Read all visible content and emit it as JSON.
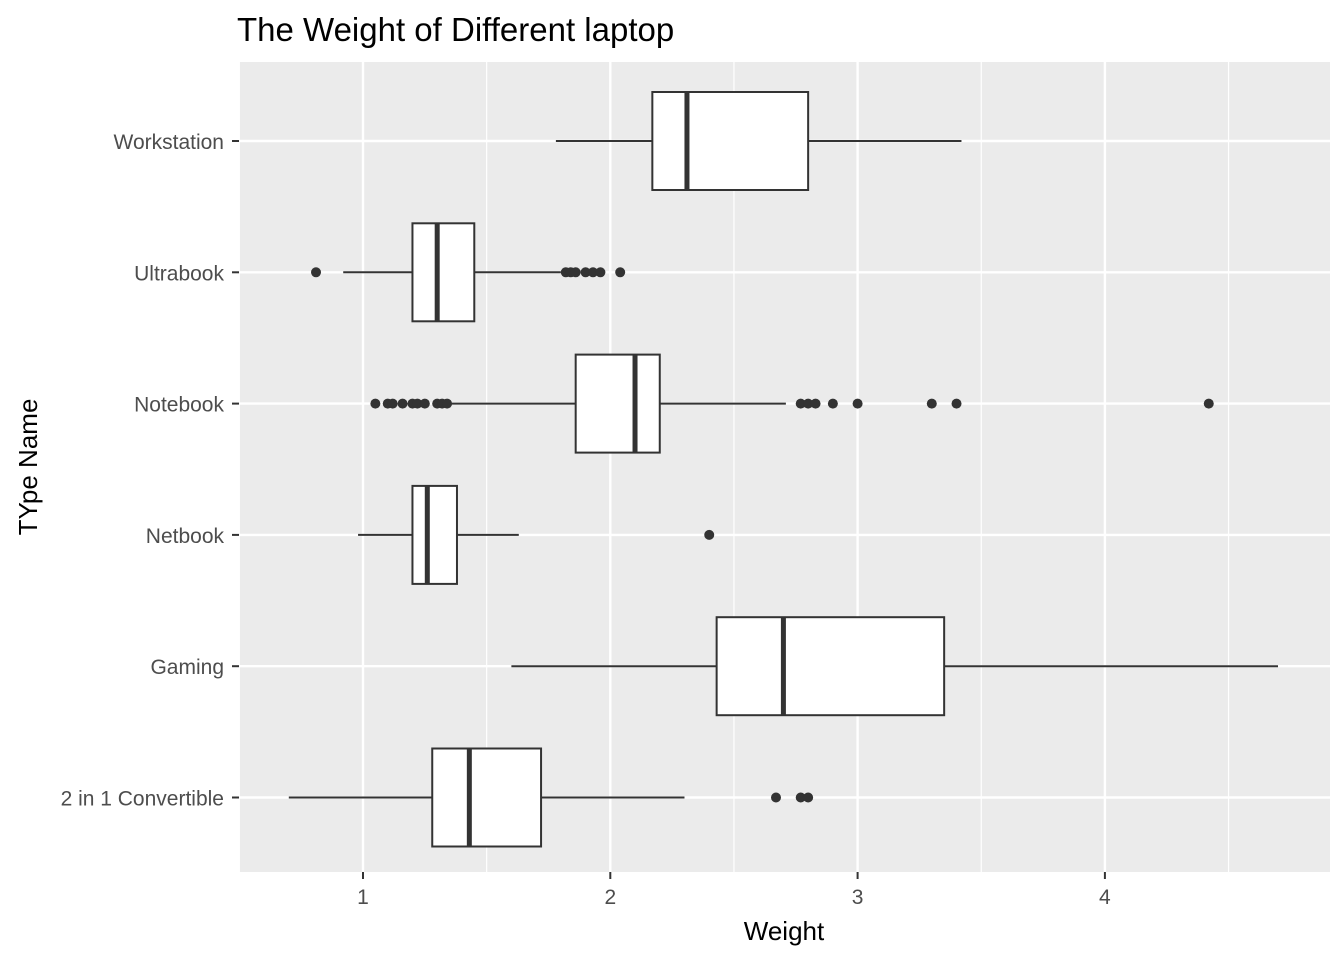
{
  "chart_data": {
    "type": "boxplot",
    "orientation": "horizontal",
    "title": "The Weight of Different laptop",
    "xlabel": "Weight",
    "ylabel": "TYpe Name",
    "xlim": [
      0.5,
      4.9
    ],
    "xticks": [
      1,
      2,
      3,
      4
    ],
    "grid": true,
    "legend": "none",
    "colors": {
      "panel": "#ebebeb",
      "grid_major": "#ffffff",
      "box_fill": "#ffffff",
      "box_line": "#333333",
      "axis_text": "#4d4d4d",
      "title": "#000000"
    },
    "categories": [
      "Workstation",
      "Ultrabook",
      "Notebook",
      "Netbook",
      "Gaming",
      "2 in 1 Convertible"
    ],
    "boxes": [
      {
        "category": "Workstation",
        "whisker_low": 1.78,
        "q1": 2.17,
        "median": 2.31,
        "q3": 2.8,
        "whisker_high": 3.42,
        "outliers": []
      },
      {
        "category": "Ultrabook",
        "whisker_low": 0.92,
        "q1": 1.2,
        "median": 1.3,
        "q3": 1.45,
        "whisker_high": 1.8,
        "outliers": [
          0.81,
          1.82,
          1.84,
          1.86,
          1.9,
          1.93,
          1.96,
          2.04
        ]
      },
      {
        "category": "Notebook",
        "whisker_low": 1.35,
        "q1": 1.86,
        "median": 2.1,
        "q3": 2.2,
        "whisker_high": 2.71,
        "outliers": [
          1.05,
          1.1,
          1.12,
          1.16,
          1.2,
          1.22,
          1.25,
          1.3,
          1.32,
          1.34,
          2.77,
          2.8,
          2.83,
          2.9,
          3.0,
          3.3,
          3.4,
          4.42
        ]
      },
      {
        "category": "Netbook",
        "whisker_low": 0.98,
        "q1": 1.2,
        "median": 1.26,
        "q3": 1.38,
        "whisker_high": 1.63,
        "outliers": [
          2.4
        ]
      },
      {
        "category": "Gaming",
        "whisker_low": 1.6,
        "q1": 2.43,
        "median": 2.7,
        "q3": 3.35,
        "whisker_high": 4.7,
        "outliers": []
      },
      {
        "category": "2 in 1 Convertible",
        "whisker_low": 0.7,
        "q1": 1.28,
        "median": 1.43,
        "q3": 1.72,
        "whisker_high": 2.3,
        "outliers": [
          2.67,
          2.77,
          2.8
        ]
      }
    ]
  }
}
